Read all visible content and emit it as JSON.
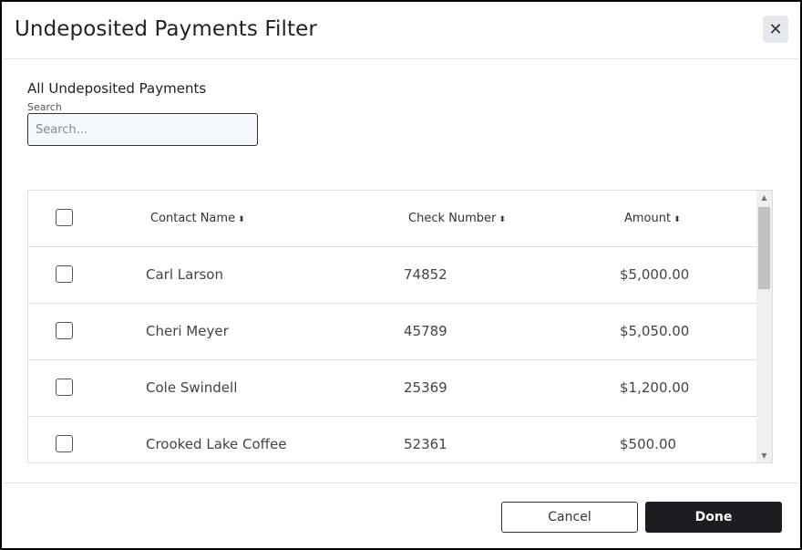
{
  "dialog": {
    "title": "Undeposited Payments Filter",
    "close_icon": "close-icon",
    "close_glyph": "✕"
  },
  "section": {
    "title": "All Undeposited Payments"
  },
  "search": {
    "label": "Search",
    "placeholder": "Search...",
    "value": ""
  },
  "table": {
    "columns": [
      "Contact Name",
      "Check Number",
      "Amount"
    ],
    "sort_glyph": "⬍",
    "rows": [
      {
        "contact": "Carl Larson",
        "check": "74852",
        "amount": "$5,000.00"
      },
      {
        "contact": "Cheri Meyer",
        "check": "45789",
        "amount": "$5,050.00"
      },
      {
        "contact": "Cole Swindell",
        "check": "25369",
        "amount": "$1,200.00"
      },
      {
        "contact": "Crooked Lake Coffee",
        "check": "52361",
        "amount": "$500.00"
      }
    ]
  },
  "footer": {
    "cancel": "Cancel",
    "done": "Done"
  }
}
